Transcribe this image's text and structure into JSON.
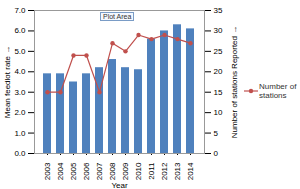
{
  "chart_data": {
    "type": "bar",
    "categories": [
      "2003",
      "2004",
      "2005",
      "2006",
      "2007",
      "2008",
      "2009",
      "2010",
      "2011",
      "2012",
      "2013",
      "2014"
    ],
    "x_label": "Year",
    "y_label": "Mean feedlot rate",
    "y2_label": "Number of stations Reported",
    "annotations": [
      "Plot Area"
    ],
    "series": [
      {
        "type": "bar",
        "color": "#4f81bd",
        "values": [
          3.9,
          3.9,
          3.5,
          3.9,
          4.2,
          4.6,
          4.2,
          4.1,
          5.6,
          6.0,
          6.3,
          6.1
        ]
      },
      {
        "name": "Number of stations",
        "type": "line",
        "axis": "y2",
        "color": "#c0504d",
        "marker": "circle",
        "values": [
          15,
          15,
          24,
          24,
          15,
          27,
          25,
          29,
          28,
          29,
          28,
          27
        ]
      }
    ],
    "ylim": [
      0,
      7
    ],
    "yticks": [
      {
        "value": 0,
        "label": "0.0"
      },
      {
        "value": 1,
        "label": "1.0"
      },
      {
        "value": 2,
        "label": "2.0"
      },
      {
        "value": 3,
        "label": "3.0"
      },
      {
        "value": 4,
        "label": "4.0"
      },
      {
        "value": 5,
        "label": "5.0"
      },
      {
        "value": 6,
        "label": "6.0"
      },
      {
        "value": 7,
        "label": "7.0"
      }
    ],
    "y2lim": [
      0,
      35
    ],
    "y2ticks": [
      0,
      5,
      10,
      15,
      20,
      25,
      30,
      35
    ],
    "grid": false,
    "legend": "right"
  }
}
